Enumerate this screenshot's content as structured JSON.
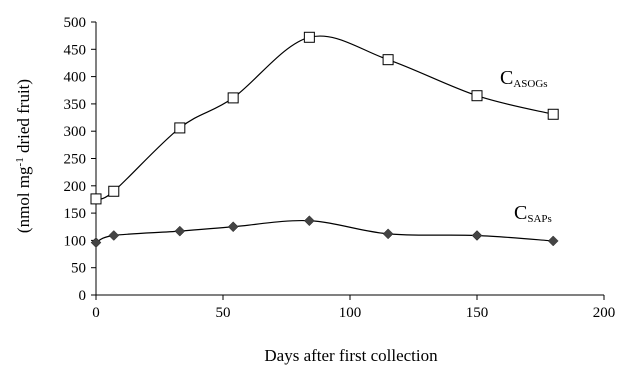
{
  "chart_data": {
    "type": "scatter",
    "xlabel": "Days after first collection",
    "ylabel_prefix": "(nmol mg",
    "ylabel_sup": "-1",
    "ylabel_suffix": " dried fruit)",
    "xlim": [
      0,
      200
    ],
    "ylim": [
      0,
      500
    ],
    "xticks": [
      0,
      50,
      100,
      150,
      200
    ],
    "yticks": [
      0,
      50,
      100,
      150,
      200,
      250,
      300,
      350,
      400,
      450,
      500
    ],
    "grid": false,
    "smooth_lines": true,
    "series": [
      {
        "label_main": "C",
        "label_sub": "ASOGs",
        "marker": "open-square",
        "color": "#000000",
        "x": [
          0,
          7,
          33,
          54,
          84,
          115,
          150,
          180
        ],
        "y": [
          176,
          190,
          306,
          361,
          472,
          431,
          365,
          331
        ]
      },
      {
        "label_main": "C",
        "label_sub": "SAPs",
        "marker": "filled-diamond",
        "color": "#000000",
        "x": [
          0,
          7,
          33,
          54,
          84,
          115,
          150,
          180
        ],
        "y": [
          96,
          109,
          117,
          125,
          136,
          112,
          109,
          99
        ]
      }
    ]
  }
}
